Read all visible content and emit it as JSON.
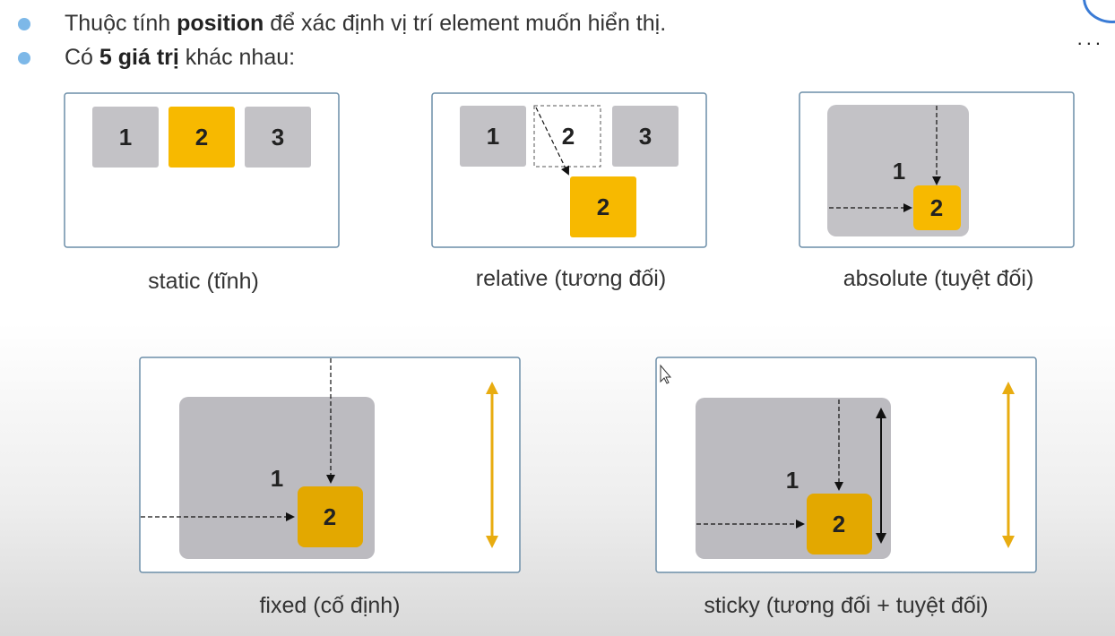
{
  "bullets": [
    {
      "pre": "Thuộc tính ",
      "bold": "position",
      "post": " để xác định vị trí element muốn hiển thị."
    },
    {
      "pre": "Có ",
      "bold": "5 giá trị",
      "post": " khác nhau:"
    }
  ],
  "menu_label": "...",
  "captions": {
    "static": "static (tĩnh)",
    "relative": "relative (tương đối)",
    "absolute": "absolute (tuyệt đối)",
    "fixed": "fixed (cố định)",
    "sticky": "sticky (tương đối + tuyệt đối)"
  },
  "box_labels": {
    "one": "1",
    "two": "2",
    "three": "3"
  },
  "colors": {
    "accent": "#f7b900",
    "accent_dark": "#e3a800",
    "gray_box": "#c3c2c6",
    "frame": "#6c8ea8",
    "bullet": "#7db8e8"
  }
}
